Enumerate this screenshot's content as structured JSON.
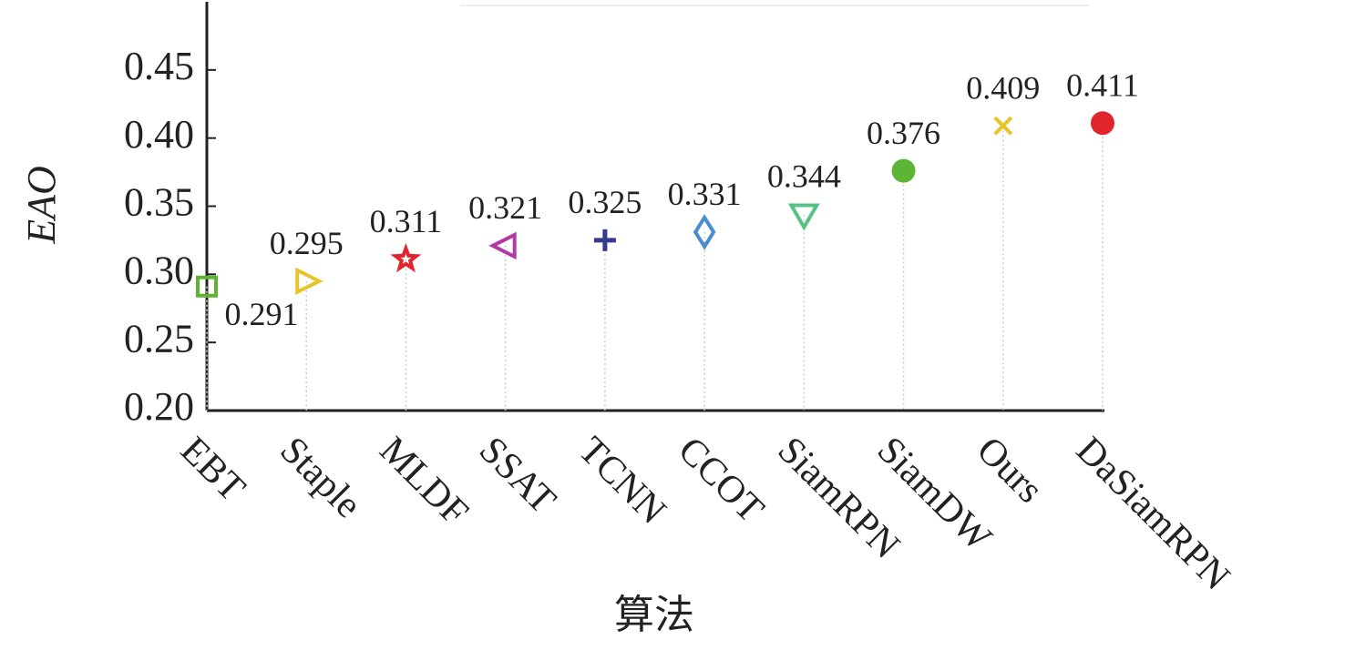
{
  "chart_data": {
    "type": "scatter",
    "x_label": "算法",
    "y_label": "EAO",
    "categories": [
      "EBT",
      "Staple",
      "MLDF",
      "SSAT",
      "TCNN",
      "CCOT",
      "SiamRPN",
      "SiamDW",
      "Ours",
      "DaSiamRPN"
    ],
    "values": [
      0.291,
      0.295,
      0.311,
      0.321,
      0.325,
      0.331,
      0.344,
      0.376,
      0.409,
      0.411
    ],
    "colors": [
      "#5bb531",
      "#e8c42a",
      "#e0262c",
      "#b23aa6",
      "#35398f",
      "#4a8cd0",
      "#57c184",
      "#5cb535",
      "#e8c42a",
      "#e0262c"
    ],
    "markers": [
      "square",
      "triangle-right",
      "star",
      "triangle-left",
      "plus",
      "diamond",
      "triangle-down",
      "circle",
      "x",
      "circle"
    ],
    "ylim": [
      0.2,
      0.5
    ],
    "yticks": [
      {
        "value": 0.2,
        "label": "0.20"
      },
      {
        "value": 0.25,
        "label": "0.25"
      },
      {
        "value": 0.3,
        "label": "0.30"
      },
      {
        "value": 0.35,
        "label": "0.35"
      },
      {
        "value": 0.4,
        "label": "0.40"
      },
      {
        "value": 0.45,
        "label": "0.45"
      }
    ],
    "grid": false
  }
}
